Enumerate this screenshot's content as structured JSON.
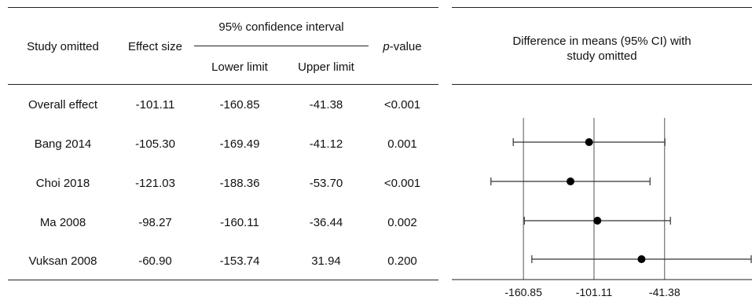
{
  "table": {
    "headers": {
      "study": "Study omitted",
      "effect": "Effect size",
      "ci_group": "95% confidence interval",
      "lower": "Lower limit",
      "upper": "Upper limit",
      "p_prefix": "p",
      "p_suffix": "-value"
    },
    "rows": [
      {
        "study": "Overall effect",
        "effect": "-101.11",
        "lower": "-160.85",
        "upper": "-41.38",
        "p": "<0.001"
      },
      {
        "study": "Bang 2014",
        "effect": "-105.30",
        "lower": "-169.49",
        "upper": "-41.12",
        "p": "0.001"
      },
      {
        "study": "Choi 2018",
        "effect": "-121.03",
        "lower": "-188.36",
        "upper": "-53.70",
        "p": "<0.001"
      },
      {
        "study": "Ma 2008",
        "effect": "-98.27",
        "lower": "-160.11",
        "upper": "-36.44",
        "p": "0.002"
      },
      {
        "study": "Vuksan 2008",
        "effect": "-60.90",
        "lower": "-153.74",
        "upper": "31.94",
        "p": "0.200"
      }
    ]
  },
  "chart_data": {
    "type": "forest",
    "title": "Difference in means (95% CI) with study omitted",
    "title_lines": [
      "Difference in means (95% CI) with",
      "study omitted"
    ],
    "x_ticks": [
      -160.85,
      -101.11,
      -41.38
    ],
    "x_tick_labels": [
      "-160.85",
      "-101.11",
      "-41.38"
    ],
    "reference_lines": [
      -160.85,
      -101.11,
      -41.38
    ],
    "xlim": [
      -209.5,
      31.94
    ],
    "points": [
      {
        "study": "Bang 2014",
        "estimate": -105.3,
        "lower": -169.49,
        "upper": -41.12
      },
      {
        "study": "Choi 2018",
        "estimate": -121.03,
        "lower": -188.36,
        "upper": -53.7
      },
      {
        "study": "Ma 2008",
        "estimate": -98.27,
        "lower": -160.11,
        "upper": -36.44
      },
      {
        "study": "Vuksan 2008",
        "estimate": -60.9,
        "lower": -153.74,
        "upper": 31.94
      }
    ],
    "colors": {
      "marker": "#000000",
      "ci_line": "#333333",
      "ref_line": "#555555",
      "rule": "#222222"
    }
  }
}
